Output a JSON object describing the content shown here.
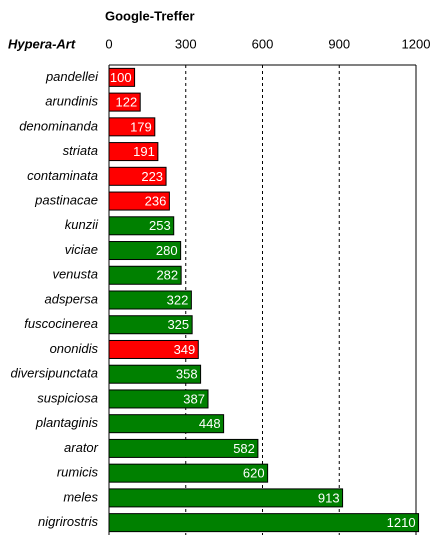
{
  "chart_data": {
    "type": "bar",
    "orientation": "horizontal",
    "title": "Google-Treffer",
    "y_label": "Hypera-Art",
    "categories": [
      "pandellei",
      "arundinis",
      "denominanda",
      "striata",
      "contaminata",
      "pastinacae",
      "kunzii",
      "viciae",
      "venusta",
      "adspersa",
      "fuscocinerea",
      "ononidis",
      "diversipunctata",
      "suspiciosa",
      "plantaginis",
      "arator",
      "rumicis",
      "meles",
      "nigrirostris"
    ],
    "values": [
      100,
      122,
      179,
      191,
      223,
      236,
      253,
      280,
      282,
      322,
      325,
      349,
      358,
      387,
      448,
      582,
      620,
      913,
      1210
    ],
    "colors": [
      "#ff0000",
      "#ff0000",
      "#ff0000",
      "#ff0000",
      "#ff0000",
      "#ff0000",
      "#008000",
      "#008000",
      "#008000",
      "#008000",
      "#008000",
      "#ff0000",
      "#008000",
      "#008000",
      "#008000",
      "#008000",
      "#008000",
      "#008000",
      "#008000"
    ],
    "xlim": [
      0,
      1200
    ],
    "xticks": [
      0,
      300,
      600,
      900,
      1200
    ],
    "grid": true
  }
}
